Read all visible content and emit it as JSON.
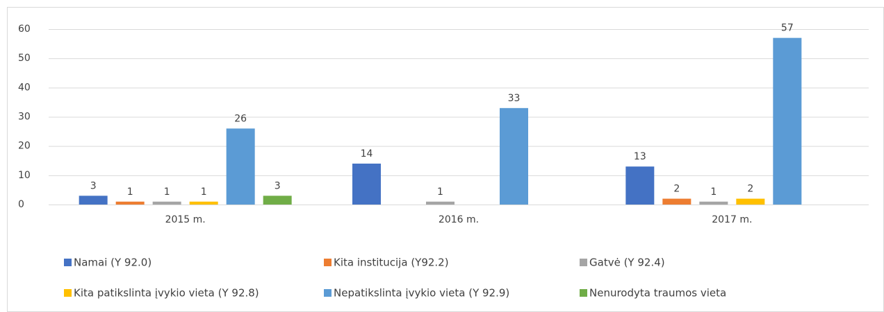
{
  "chart_data": {
    "type": "bar",
    "categories": [
      "2015 m.",
      "2016 m.",
      "2017 m."
    ],
    "series": [
      {
        "name": "Namai (Y 92.0)",
        "color": "#4472c4",
        "values": [
          3,
          14,
          13
        ]
      },
      {
        "name": "Kita institucija (Y92.2)",
        "color": "#ed7d31",
        "values": [
          1,
          null,
          2
        ]
      },
      {
        "name": "Gatvė (Y 92.4)",
        "color": "#a5a5a5",
        "values": [
          1,
          1,
          1
        ]
      },
      {
        "name": "Kita patikslinta įvykio vieta (Y 92.8)",
        "color": "#ffc000",
        "values": [
          1,
          null,
          2
        ]
      },
      {
        "name": "Nepatikslinta įvykio vieta (Y 92.9)",
        "color": "#5b9bd5",
        "values": [
          26,
          33,
          57
        ]
      },
      {
        "name": "Nenurodyta traumos vieta",
        "color": "#70ad47",
        "values": [
          3,
          null,
          null
        ]
      }
    ],
    "ylim": [
      0,
      60
    ],
    "yticks": [
      0,
      10,
      20,
      30,
      40,
      50,
      60
    ],
    "grid": true,
    "legend": "bottom"
  }
}
